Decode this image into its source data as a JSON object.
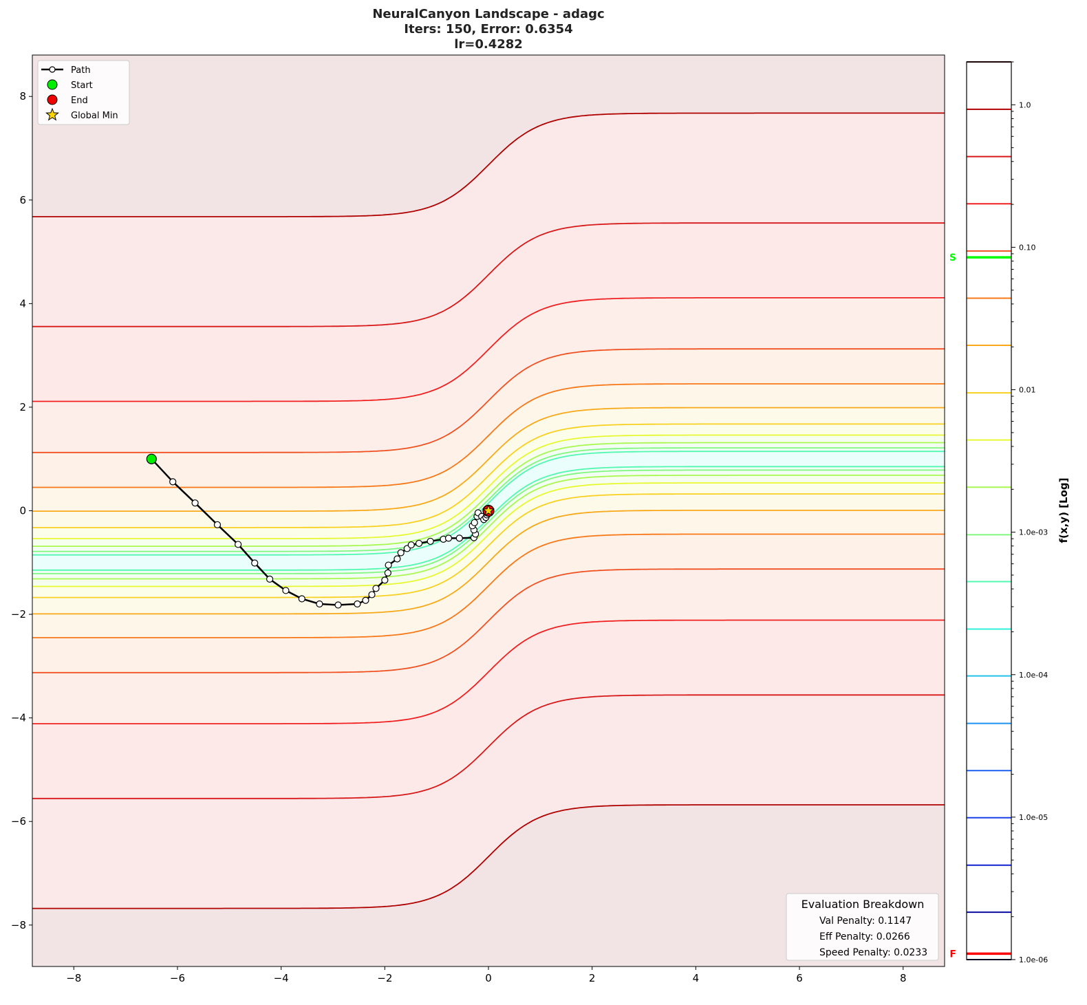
{
  "chart_data": {
    "type": "contour",
    "title_lines": [
      "NeuralCanyon Landscape - adagc",
      "Iters: 150, Error: 0.6354",
      "lr=0.4282"
    ],
    "xlim": [
      -8.8,
      8.8
    ],
    "ylim": [
      -8.8,
      8.8
    ],
    "xticks": [
      -8,
      -6,
      -4,
      -2,
      0,
      2,
      4,
      6,
      8
    ],
    "yticks": [
      -8,
      -6,
      -4,
      -2,
      0,
      2,
      4,
      6,
      8
    ],
    "grid": false,
    "colorbar": {
      "label": "f(x,y) [Log]",
      "scale": "log",
      "range": [
        1e-06,
        2.0
      ],
      "tick_labels": [
        "1.0",
        "0.10",
        "0.01",
        "1.0e-03",
        "1.0e-04",
        "1.0e-05",
        "1.0e-06"
      ],
      "tick_values": [
        1,
        0.1,
        0.01,
        0.001,
        0.0001,
        1e-05,
        1e-06
      ],
      "levels": [
        1e-06,
        2.15e-06,
        4.6e-06,
        9.9e-06,
        2.12e-05,
        4.55e-05,
        9.8e-05,
        0.000209,
        0.00045,
        0.00096,
        0.00207,
        0.00444,
        0.0095,
        0.0205,
        0.0439,
        0.0942,
        0.202,
        0.433,
        0.93,
        2.0
      ],
      "level_colors": [
        "#10104a",
        "#0a0aa0",
        "#1020d0",
        "#1840e8",
        "#1a60f0",
        "#1e90f0",
        "#20c0e8",
        "#30f0d8",
        "#50f8b0",
        "#80f880",
        "#a8f850",
        "#e8f830",
        "#f8d020",
        "#f8a818",
        "#f87818",
        "#f05020",
        "#f02020",
        "#d81818",
        "#b00000",
        "#400808"
      ],
      "markers": [
        {
          "label": "S",
          "value": 0.085,
          "color": "#00ff00"
        },
        {
          "label": "F",
          "value": 1.1e-06,
          "color": "#ff0000"
        }
      ]
    },
    "path": {
      "x": [
        -6.5,
        -6.09,
        -5.66,
        -5.23,
        -4.83,
        -4.51,
        -4.22,
        -3.91,
        -3.6,
        -3.26,
        -2.9,
        -2.53,
        -2.37,
        -2.25,
        -2.17,
        -2.0,
        -1.94,
        -1.93,
        -1.76,
        -1.69,
        -1.57,
        -1.49,
        -1.34,
        -1.12,
        -0.87,
        -0.77,
        -0.56,
        -0.28,
        -0.25,
        -0.28,
        -0.31,
        -0.27,
        -0.22,
        -0.2,
        -0.13,
        -0.09,
        -0.05,
        -0.03,
        0.0
      ],
      "y": [
        1.0,
        0.56,
        0.15,
        -0.27,
        -0.65,
        -1.01,
        -1.32,
        -1.54,
        -1.7,
        -1.8,
        -1.82,
        -1.8,
        -1.73,
        -1.62,
        -1.5,
        -1.34,
        -1.2,
        -1.05,
        -0.93,
        -0.81,
        -0.73,
        -0.66,
        -0.63,
        -0.59,
        -0.55,
        -0.53,
        -0.53,
        -0.52,
        -0.45,
        -0.37,
        -0.29,
        -0.23,
        -0.11,
        -0.04,
        -0.11,
        -0.17,
        -0.13,
        -0.08,
        0.0
      ]
    },
    "start": {
      "x": -6.5,
      "y": 1.0
    },
    "end": {
      "x": 0.0,
      "y": 0.0
    },
    "global_min": {
      "x": 0.0,
      "y": 0.0
    },
    "legend": {
      "placement": "top-left",
      "entries": [
        "Path",
        "Start",
        "End",
        "Global Min"
      ]
    },
    "evaluation": {
      "placement": "bottom-right",
      "title": "Evaluation Breakdown",
      "lines": [
        "Val Penalty: 0.1147",
        "Eff Penalty: 0.0266",
        "Speed Penalty: 0.0233"
      ]
    }
  }
}
